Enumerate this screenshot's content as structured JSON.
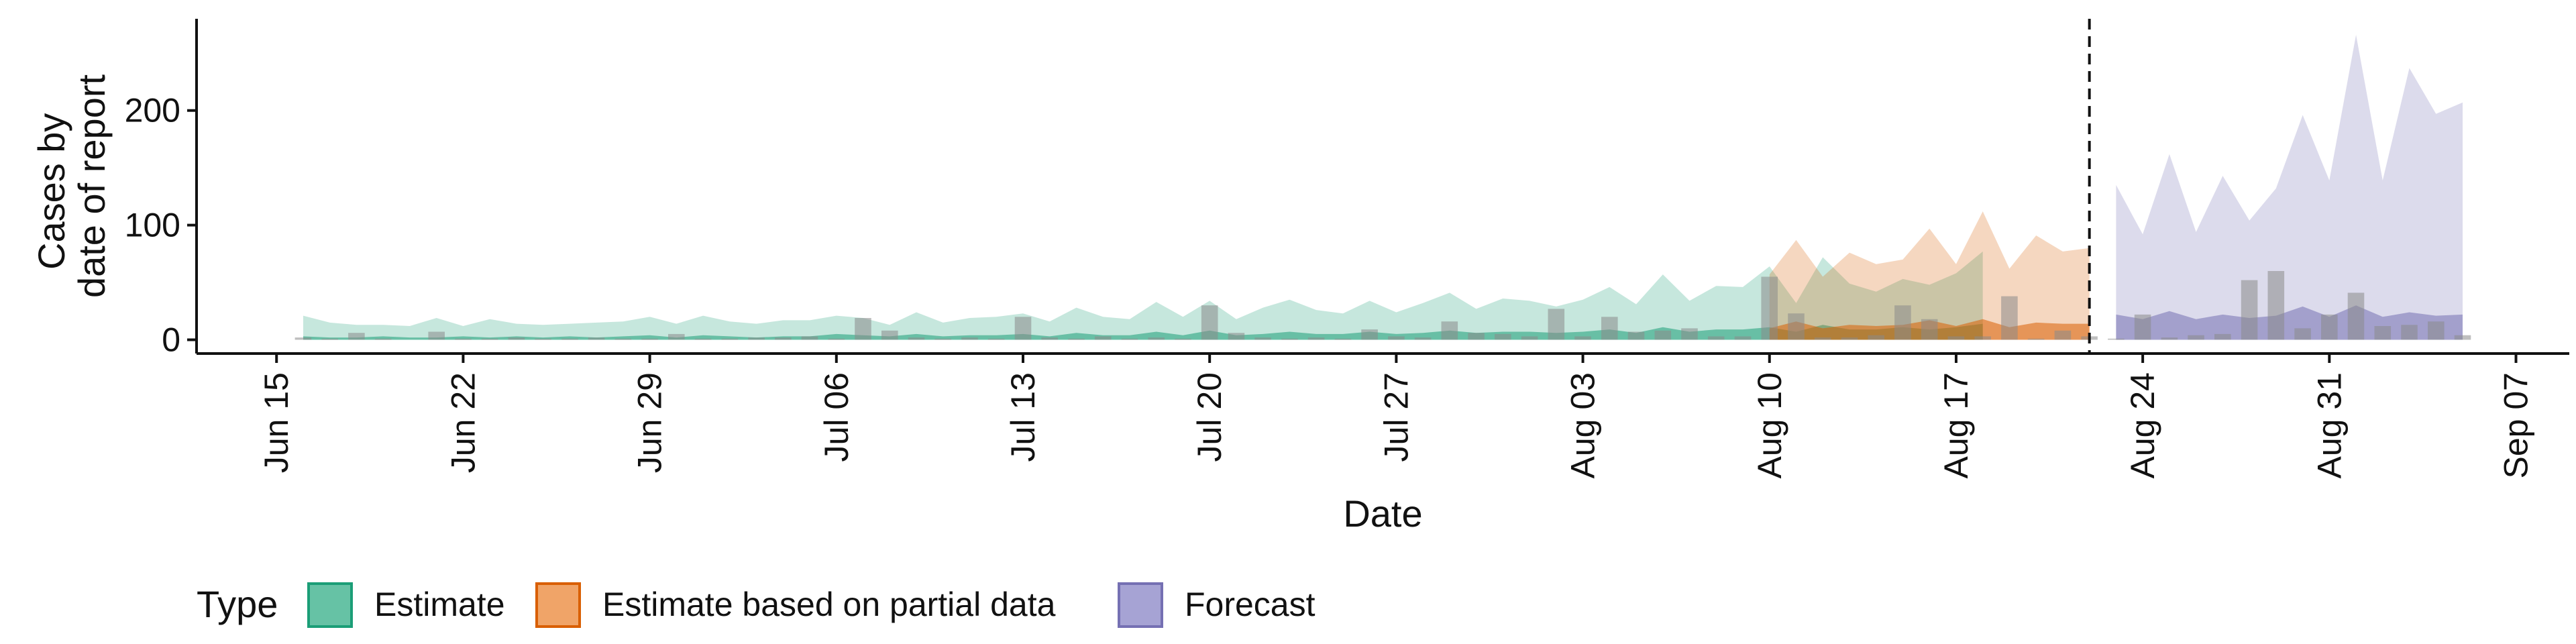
{
  "chart_data": {
    "type": "area",
    "xlabel": "Date",
    "ylabel_lines": [
      "Cases by",
      "date of report"
    ],
    "ylim": [
      0,
      280
    ],
    "xlim": [
      "2020-06-12",
      "2020-09-09"
    ],
    "y_ticks": [
      0,
      100,
      200
    ],
    "x_ticks": [
      {
        "date": "2020-06-15",
        "label": "Jun 15"
      },
      {
        "date": "2020-06-22",
        "label": "Jun 22"
      },
      {
        "date": "2020-06-29",
        "label": "Jun 29"
      },
      {
        "date": "2020-07-06",
        "label": "Jul 06"
      },
      {
        "date": "2020-07-13",
        "label": "Jul 13"
      },
      {
        "date": "2020-07-20",
        "label": "Jul 20"
      },
      {
        "date": "2020-07-27",
        "label": "Jul 27"
      },
      {
        "date": "2020-08-03",
        "label": "Aug 03"
      },
      {
        "date": "2020-08-10",
        "label": "Aug 10"
      },
      {
        "date": "2020-08-17",
        "label": "Aug 17"
      },
      {
        "date": "2020-08-24",
        "label": "Aug 24"
      },
      {
        "date": "2020-08-31",
        "label": "Aug 31"
      },
      {
        "date": "2020-09-07",
        "label": "Sep 07"
      }
    ],
    "forecast_start_date": "2020-08-22",
    "legend": {
      "title": "Type",
      "position": "bottom",
      "entries": [
        {
          "label": "Estimate",
          "fill": "#66c2a5",
          "stroke": "#1b9e77"
        },
        {
          "label": "Estimate based on partial data",
          "fill": "#f0a468",
          "stroke": "#d95f02"
        },
        {
          "label": "Forecast",
          "fill": "#a6a3d4",
          "stroke": "#7570b3"
        }
      ]
    },
    "colors": {
      "estimate": "#1b9e77",
      "partial": "#d95f02",
      "forecast": "#7570b3",
      "bars": "#8a8a8a",
      "vline": "#111111"
    },
    "series": [
      {
        "type": "Estimate",
        "start_date": "2020-06-16",
        "outer_upper": [
          21,
          15,
          13,
          13,
          12,
          19,
          12,
          18,
          14,
          13,
          14,
          15,
          16,
          20,
          14,
          21,
          16,
          14,
          17,
          17,
          21,
          19,
          13,
          24,
          15,
          19,
          20,
          23,
          16,
          28,
          20,
          18,
          33,
          20,
          34,
          18,
          28,
          35,
          26,
          23,
          34,
          24,
          32,
          41,
          27,
          36,
          34,
          29,
          35,
          46,
          31,
          57,
          34,
          47,
          46,
          64,
          32,
          72,
          49,
          42,
          53,
          48,
          58,
          77
        ],
        "outer_lower": [
          0,
          0,
          0,
          0,
          0,
          0,
          0,
          0,
          0,
          0,
          0,
          0,
          0,
          0,
          0,
          0,
          0,
          0,
          0,
          0,
          0,
          0,
          0,
          0,
          0,
          0,
          0,
          0,
          0,
          0,
          0,
          0,
          0,
          0,
          0,
          0,
          0,
          0,
          0,
          0,
          0,
          0,
          0,
          0,
          0,
          0,
          0,
          0,
          0,
          0,
          0,
          0,
          0,
          0,
          0,
          0,
          0,
          0,
          0,
          0,
          0,
          0,
          0,
          0
        ],
        "inner_upper": [
          3,
          2,
          2,
          3,
          2,
          2,
          3,
          2,
          3,
          2,
          3,
          2,
          3,
          4,
          2,
          4,
          3,
          2,
          3,
          3,
          5,
          4,
          3,
          5,
          3,
          4,
          4,
          5,
          3,
          6,
          4,
          4,
          7,
          4,
          8,
          4,
          5,
          7,
          5,
          5,
          7,
          5,
          6,
          8,
          6,
          7,
          7,
          6,
          7,
          9,
          6,
          11,
          7,
          9,
          9,
          11,
          7,
          13,
          9,
          9,
          11,
          9,
          11,
          14
        ],
        "inner_lower": [
          0,
          0,
          0,
          0,
          0,
          0,
          0,
          0,
          0,
          0,
          0,
          0,
          0,
          0,
          0,
          0,
          0,
          0,
          0,
          0,
          0,
          0,
          0,
          0,
          0,
          0,
          0,
          0,
          0,
          0,
          0,
          0,
          0,
          0,
          0,
          0,
          0,
          0,
          0,
          0,
          0,
          0,
          0,
          0,
          0,
          0,
          0,
          0,
          0,
          0,
          0,
          0,
          0,
          0,
          0,
          0,
          0,
          0,
          0,
          0,
          0,
          0,
          0,
          0
        ]
      },
      {
        "type": "Estimate based on partial data",
        "start_date": "2020-08-10",
        "outer_upper": [
          57,
          87,
          55,
          76,
          66,
          70,
          97,
          66,
          112,
          62,
          91,
          77,
          80
        ],
        "outer_lower": [
          0,
          0,
          0,
          0,
          0,
          0,
          0,
          0,
          0,
          0,
          0,
          0,
          0
        ],
        "inner_upper": [
          10,
          16,
          10,
          13,
          12,
          13,
          17,
          12,
          18,
          11,
          15,
          14,
          14
        ],
        "inner_lower": [
          0,
          0,
          0,
          0,
          0,
          0,
          0,
          0,
          0,
          0,
          0,
          0,
          0
        ]
      },
      {
        "type": "Forecast",
        "start_date": "2020-08-23",
        "outer_upper": [
          135,
          92,
          162,
          94,
          143,
          104,
          132,
          196,
          139,
          266,
          139,
          237,
          197,
          207
        ],
        "outer_lower": [
          0,
          0,
          0,
          0,
          0,
          0,
          0,
          0,
          0,
          0,
          0,
          0,
          0,
          0
        ],
        "inner_upper": [
          22,
          18,
          25,
          18,
          22,
          19,
          21,
          29,
          20,
          30,
          20,
          24,
          21,
          22
        ],
        "inner_lower": [
          0,
          0,
          0,
          0,
          0,
          0,
          0,
          0,
          0,
          0,
          0,
          0,
          0,
          0
        ]
      }
    ],
    "bars": {
      "start_date": "2020-06-16",
      "values": [
        2,
        1,
        6,
        1,
        0,
        7,
        1,
        1,
        2,
        1,
        1,
        2,
        1,
        1,
        5,
        1,
        1,
        2,
        2,
        3,
        1,
        19,
        8,
        2,
        1,
        2,
        1,
        20,
        2,
        1,
        3,
        1,
        2,
        1,
        30,
        6,
        2,
        1,
        2,
        1,
        9,
        3,
        2,
        16,
        6,
        5,
        3,
        27,
        3,
        20,
        7,
        8,
        10,
        3,
        3,
        55,
        23,
        2,
        2,
        4,
        30,
        18,
        3,
        3,
        38,
        1,
        8,
        3,
        1,
        22,
        2,
        4,
        5,
        52,
        60,
        10,
        22,
        41,
        12,
        13,
        16,
        4
      ]
    }
  }
}
